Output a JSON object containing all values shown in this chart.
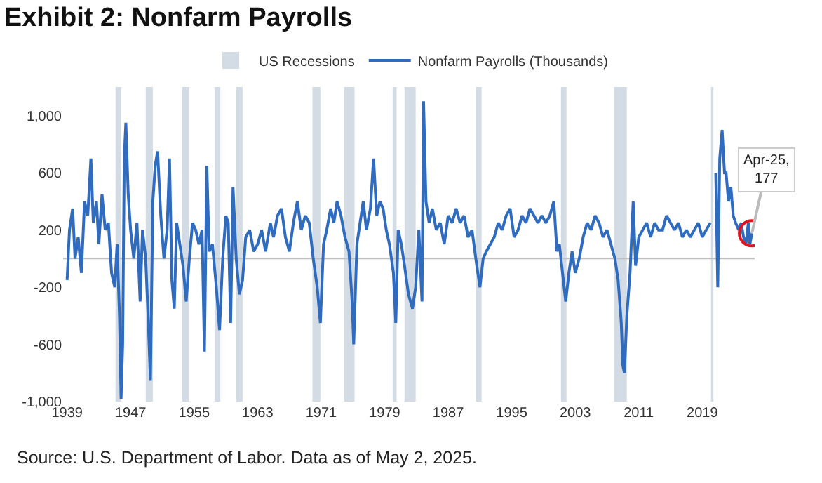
{
  "chart_data": {
    "type": "line",
    "title": "Exhibit 2: Nonfarm Payrolls",
    "x": [
      1939.0,
      1939.3,
      1939.7,
      1940.0,
      1940.4,
      1940.8,
      1941.2,
      1941.6,
      1942.0,
      1942.3,
      1942.7,
      1943.0,
      1943.4,
      1943.8,
      1944.2,
      1944.6,
      1945.0,
      1945.3,
      1945.6,
      1945.8,
      1946.0,
      1946.2,
      1946.4,
      1946.7,
      1947.0,
      1947.4,
      1947.8,
      1948.2,
      1948.5,
      1948.9,
      1949.2,
      1949.5,
      1949.8,
      1950.1,
      1950.4,
      1950.8,
      1951.2,
      1951.6,
      1951.9,
      1952.2,
      1952.5,
      1952.8,
      1953.2,
      1953.6,
      1954.0,
      1954.4,
      1954.8,
      1955.2,
      1955.6,
      1956.0,
      1956.3,
      1956.6,
      1956.9,
      1957.3,
      1957.8,
      1958.2,
      1958.6,
      1959.0,
      1959.3,
      1959.6,
      1959.9,
      1960.3,
      1960.7,
      1961.1,
      1961.5,
      1962.0,
      1962.5,
      1963.0,
      1963.5,
      1964.0,
      1964.6,
      1965.0,
      1965.5,
      1966.0,
      1966.5,
      1967.0,
      1967.5,
      1968.0,
      1968.5,
      1969.0,
      1969.5,
      1970.0,
      1970.5,
      1970.9,
      1971.3,
      1971.7,
      1972.2,
      1972.6,
      1973.0,
      1973.5,
      1974.0,
      1974.5,
      1974.9,
      1975.1,
      1975.5,
      1975.9,
      1976.3,
      1976.7,
      1977.2,
      1977.6,
      1978.0,
      1978.4,
      1978.8,
      1979.2,
      1979.6,
      1980.1,
      1980.4,
      1980.7,
      1981.1,
      1981.5,
      1982.0,
      1982.5,
      1982.9,
      1983.3,
      1983.7,
      1983.9,
      1984.2,
      1984.6,
      1985.0,
      1985.5,
      1986.0,
      1986.5,
      1987.0,
      1987.5,
      1988.0,
      1988.5,
      1989.0,
      1989.5,
      1990.0,
      1990.6,
      1991.0,
      1991.4,
      1991.8,
      1992.3,
      1992.8,
      1993.3,
      1993.8,
      1994.3,
      1994.8,
      1995.3,
      1995.8,
      1996.3,
      1996.8,
      1997.3,
      1997.8,
      1998.3,
      1998.8,
      1999.3,
      1999.8,
      2000.3,
      2000.7,
      2001.0,
      2001.4,
      2001.8,
      2002.2,
      2002.6,
      2003.0,
      2003.5,
      2004.0,
      2004.5,
      2005.0,
      2005.5,
      2006.0,
      2006.5,
      2007.0,
      2007.5,
      2008.0,
      2008.4,
      2008.8,
      2009.0,
      2009.2,
      2009.5,
      2009.9,
      2010.3,
      2010.6,
      2011.0,
      2011.5,
      2012.0,
      2012.5,
      2013.0,
      2013.5,
      2014.0,
      2014.5,
      2015.0,
      2015.5,
      2016.0,
      2016.5,
      2017.0,
      2017.5,
      2018.0,
      2018.5,
      2019.0,
      2019.5,
      2020.0,
      2020.25,
      2020.4,
      2020.55,
      2020.7,
      2020.95,
      2021.2,
      2021.5,
      2021.8,
      2022.0,
      2022.3,
      2022.6,
      2022.9,
      2023.2,
      2023.6,
      2023.9,
      2024.2,
      2024.5,
      2024.8,
      2025.0,
      2025.25
    ],
    "series": [
      {
        "name": "Nonfarm Payrolls (Thousands)",
        "color": "#2f6bbf",
        "values": [
          -150,
          200,
          350,
          0,
          150,
          -100,
          400,
          300,
          700,
          250,
          400,
          100,
          450,
          200,
          250,
          -100,
          -200,
          100,
          -400,
          -980,
          -600,
          700,
          950,
          450,
          200,
          0,
          250,
          -300,
          200,
          0,
          -400,
          -850,
          400,
          650,
          750,
          300,
          0,
          200,
          700,
          -150,
          -350,
          250,
          100,
          -50,
          -300,
          0,
          250,
          200,
          100,
          200,
          -650,
          650,
          50,
          100,
          -200,
          -500,
          0,
          300,
          250,
          -450,
          500,
          0,
          -250,
          -150,
          150,
          200,
          50,
          100,
          200,
          50,
          250,
          150,
          300,
          350,
          150,
          50,
          250,
          400,
          200,
          300,
          250,
          0,
          -200,
          -450,
          100,
          200,
          350,
          250,
          400,
          300,
          150,
          50,
          -300,
          -600,
          100,
          250,
          400,
          200,
          350,
          700,
          300,
          400,
          350,
          200,
          100,
          -100,
          -450,
          200,
          100,
          -50,
          -250,
          -350,
          -200,
          200,
          -300,
          1100,
          400,
          250,
          350,
          200,
          250,
          100,
          300,
          250,
          350,
          250,
          300,
          150,
          200,
          -50,
          -200,
          0,
          50,
          100,
          150,
          250,
          200,
          300,
          350,
          150,
          200,
          300,
          250,
          350,
          300,
          250,
          300,
          250,
          300,
          400,
          50,
          100,
          -100,
          -300,
          -100,
          50,
          -100,
          0,
          150,
          250,
          200,
          300,
          250,
          150,
          200,
          100,
          0,
          -150,
          -450,
          -750,
          -800,
          -400,
          -100,
          400,
          -50,
          150,
          200,
          250,
          150,
          250,
          200,
          200,
          300,
          250,
          200,
          250,
          150,
          200,
          150,
          200,
          250,
          150,
          200,
          250,
          null,
          null,
          null,
          600,
          -200,
          700,
          900,
          600,
          600,
          400,
          500,
          300,
          250,
          200,
          250,
          150,
          100,
          250,
          100,
          177
        ]
      }
    ],
    "xlim": [
      1938.5,
      2025.6
    ],
    "xticks": [
      1939,
      1947,
      1955,
      1963,
      1971,
      1979,
      1987,
      1995,
      2003,
      2011,
      2019
    ],
    "ylim": [
      -1000,
      1200
    ],
    "yticks": [
      {
        "value": -1000,
        "label": "-1,000"
      },
      -600,
      -200,
      200,
      600,
      {
        "value": 1000,
        "label": "1,000"
      }
    ],
    "grid": false,
    "legend": "top",
    "ref_lines": [
      {
        "axis": "y",
        "value": 0,
        "color": "#bfbfbf"
      }
    ],
    "bands": [
      {
        "axis": "x",
        "from": 1945.1,
        "to": 1945.8,
        "label": "US Recessions",
        "color": "#d3dbe5"
      },
      {
        "axis": "x",
        "from": 1948.9,
        "to": 1949.8,
        "color": "#d3dbe5"
      },
      {
        "axis": "x",
        "from": 1953.5,
        "to": 1954.4,
        "color": "#d3dbe5"
      },
      {
        "axis": "x",
        "from": 1957.6,
        "to": 1958.3,
        "color": "#d3dbe5"
      },
      {
        "axis": "x",
        "from": 1960.3,
        "to": 1961.1,
        "color": "#d3dbe5"
      },
      {
        "axis": "x",
        "from": 1969.9,
        "to": 1970.9,
        "color": "#d3dbe5"
      },
      {
        "axis": "x",
        "from": 1973.9,
        "to": 1975.2,
        "color": "#d3dbe5"
      },
      {
        "axis": "x",
        "from": 1980.0,
        "to": 1980.5,
        "color": "#d3dbe5"
      },
      {
        "axis": "x",
        "from": 1981.5,
        "to": 1982.9,
        "color": "#d3dbe5"
      },
      {
        "axis": "x",
        "from": 1990.5,
        "to": 1991.2,
        "color": "#d3dbe5"
      },
      {
        "axis": "x",
        "from": 2001.2,
        "to": 2001.9,
        "color": "#d3dbe5"
      },
      {
        "axis": "x",
        "from": 2007.9,
        "to": 2009.5,
        "color": "#d3dbe5"
      },
      {
        "axis": "x",
        "from": 2020.1,
        "to": 2020.4,
        "color": "#d3dbe5"
      }
    ],
    "annotations": [
      {
        "text": "Apr-25,\n177",
        "x": 2025.25,
        "y": 177
      },
      "Source: U.S. Department of Labor. Data as of May 2, 2025."
    ]
  }
}
